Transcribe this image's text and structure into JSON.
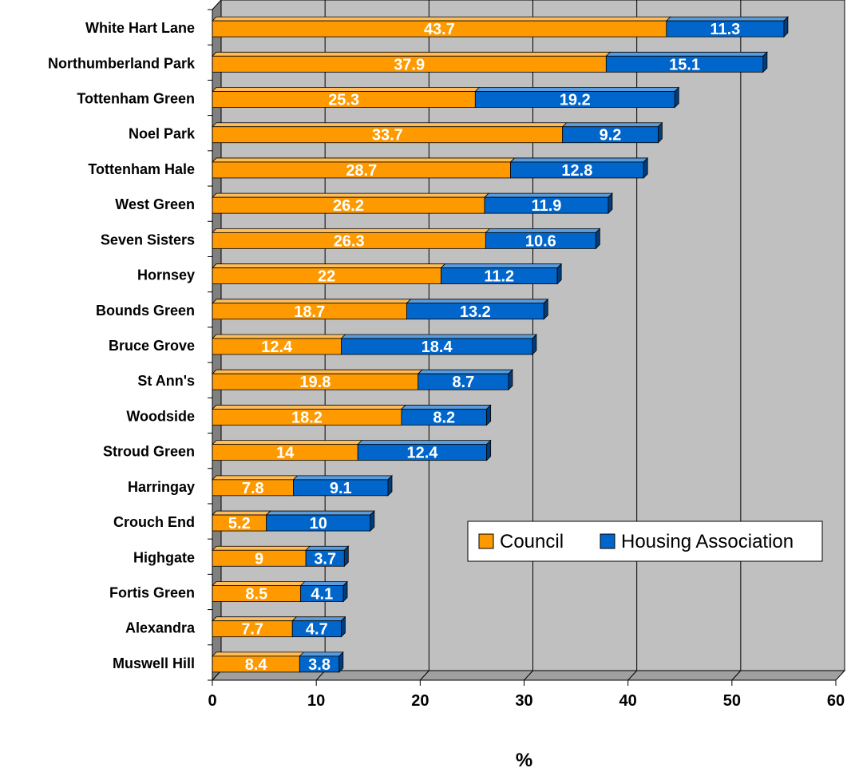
{
  "chart_data": {
    "type": "bar",
    "orientation": "horizontal",
    "stacked": true,
    "categories": [
      "White Hart Lane",
      "Northumberland Park",
      "Tottenham Green",
      "Noel Park",
      "Tottenham Hale",
      "West Green",
      "Seven Sisters",
      "Hornsey",
      "Bounds Green",
      "Bruce Grove",
      "St Ann's",
      "Woodside",
      "Stroud Green",
      "Harringay",
      "Crouch End",
      "Highgate",
      "Fortis Green",
      "Alexandra",
      "Muswell Hill"
    ],
    "series": [
      {
        "name": "Council",
        "color": "#FF9900",
        "values": [
          43.7,
          37.9,
          25.3,
          33.7,
          28.7,
          26.2,
          26.3,
          22,
          18.7,
          12.4,
          19.8,
          18.2,
          14,
          7.8,
          5.2,
          9,
          8.5,
          7.7,
          8.4
        ]
      },
      {
        "name": "Housing Association",
        "color": "#0066CC",
        "values": [
          11.3,
          15.1,
          19.2,
          9.2,
          12.8,
          11.9,
          10.6,
          11.2,
          13.2,
          18.4,
          8.7,
          8.2,
          12.4,
          9.1,
          10,
          3.7,
          4.1,
          4.7,
          3.8
        ]
      }
    ],
    "data_label_text": {
      "Council": [
        "43.7",
        "37.9",
        "25.3",
        "33.7",
        "28.7",
        "26.2",
        "26.3",
        "22",
        "18.7",
        "12.4",
        "19.8",
        "18.2",
        "14",
        "7.8",
        "5.2",
        "9",
        "8.5",
        "7.7",
        "8.4"
      ],
      "Housing Association": [
        "11.3",
        "15.1",
        "19.2",
        "9.2",
        "12.8",
        "11.9",
        "10.6",
        "11.2",
        "13.2",
        "18.4",
        "8.7",
        "8.2",
        "12.4",
        "9.1",
        "10",
        "3.7",
        "4.1",
        "4.7",
        "3.8"
      ]
    },
    "title": "",
    "xlabel": "%",
    "ylabel": "",
    "xlim": [
      0,
      60
    ],
    "xticks": [
      0,
      10,
      20,
      30,
      40,
      50,
      60
    ],
    "xtick_labels": [
      "0",
      "10",
      "20",
      "30",
      "40",
      "50",
      "60"
    ],
    "grid": "vertical",
    "legend_position": "right",
    "plot_background": "#C0C0C0"
  }
}
